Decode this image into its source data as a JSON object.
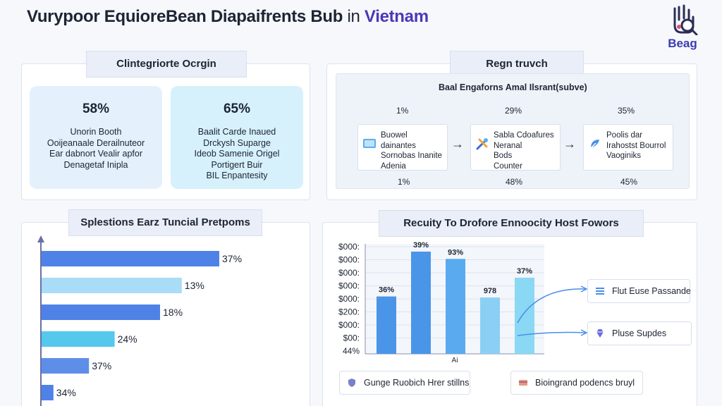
{
  "header": {
    "title_main": "Vurypoor EquioreBean Diapaifrents Bub",
    "title_in": "in",
    "title_accent": "Vietnam",
    "logo_text": "Beag",
    "accent_color": "#4a38b8"
  },
  "origin": {
    "title": "Clintegriorte Ocrgin",
    "cards": [
      {
        "pct": "58%",
        "lines": [
          "Unorin Booth",
          "Ooijeanaale Derailnuteor",
          "Ear dabnort Vealir apfor",
          "Denagetaf Inipla"
        ]
      },
      {
        "pct": "65%",
        "lines": [
          "Baalit Carde Inaued",
          "Drckysh Suparge",
          "Ideob Samenie Origel",
          "Portigert Buir",
          "BIL Enpantesity"
        ]
      }
    ]
  },
  "region": {
    "title": "Regn truvch",
    "subtitle": "Baal Engaforns Amal Ilsrant(subve)",
    "top_pcts": [
      "1%",
      "29%",
      "35%"
    ],
    "bottom_pcts": [
      "1%",
      "48%",
      "45%"
    ],
    "boxes": [
      {
        "icon": "laptop-icon",
        "lines": [
          "Buowel dainantes",
          "Sornobas Inanite",
          "Adenia"
        ]
      },
      {
        "icon": "tools-icon",
        "lines": [
          "Sabla Cdoafures",
          "Neranal",
          "Bods",
          "Counter"
        ]
      },
      {
        "icon": "leaf-icon",
        "lines": [
          "Poolis dar",
          "Irahostst Bourrol",
          "Vaoginiks"
        ]
      }
    ]
  },
  "tunnel": {
    "title": "Splestions Earz Tuncial Pretpoms",
    "chart_data": {
      "type": "bar",
      "orientation": "horizontal",
      "labels": [
        "37%",
        "13%",
        "18%",
        "24%",
        "37%",
        "34%"
      ],
      "values": [
        37,
        13,
        18,
        24,
        37,
        34
      ],
      "bar_lengths": [
        0.9,
        0.71,
        0.6,
        0.37,
        0.24,
        0.06
      ],
      "colors": [
        "#4f82e6",
        "#a9dcf6",
        "#4f82e6",
        "#55c8ee",
        "#5f8ee8",
        "#4f82e6"
      ]
    }
  },
  "recruity": {
    "title": "Recuity To Drofore Ennoocity Host Fowors",
    "chart_data": {
      "type": "bar",
      "y_tick_labels": [
        "$000:",
        "$000:",
        "$000:",
        "$000:",
        "$000:",
        "$200:",
        "$000:",
        "$00:",
        "44%"
      ],
      "x_label": "Ai",
      "labels": [
        "36%",
        "39%",
        "93%",
        "978",
        "37%"
      ],
      "values": [
        0.55,
        0.98,
        0.91,
        0.54,
        0.73
      ],
      "colors": [
        "#4a95e8",
        "#4a95e8",
        "#5aaaf0",
        "#8ad0f4",
        "#8ad8f4"
      ]
    },
    "legend": [
      {
        "icon": "list-icon",
        "label": "Flut Euse Passande"
      },
      {
        "icon": "gem-icon",
        "label": "Pluse Supdes"
      }
    ],
    "footer": [
      {
        "icon": "shield-icon",
        "label": "Gunge Ruobich Hrer stillns"
      },
      {
        "icon": "card-icon",
        "label": "Bioingrand podencs bruyl"
      }
    ]
  }
}
